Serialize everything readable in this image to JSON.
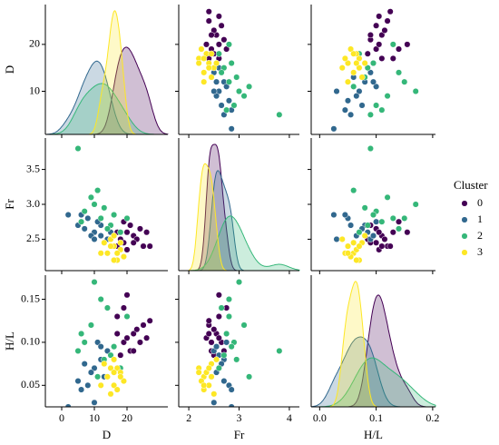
{
  "chart_data": {
    "type": "pairplot",
    "legend_title": "Cluster",
    "legend": "right",
    "variables": [
      {
        "label": "D",
        "xlim": [
          -5,
          32.5
        ],
        "xticks": [
          0,
          10,
          20
        ],
        "ylim": [
          0.8,
          28.5
        ],
        "yticks": [
          10,
          20
        ]
      },
      {
        "label": "Fr",
        "xlim": [
          1.8,
          4.2
        ],
        "xticks": [
          2,
          3,
          4
        ],
        "ylim": [
          2.05,
          3.95
        ],
        "yticks": [
          2.5,
          {
            "value": 3,
            "label": "3.0"
          },
          3.5
        ]
      },
      {
        "label": "H/L",
        "xlim": [
          -0.015,
          0.205
        ],
        "xticks": [
          {
            "value": 0,
            "label": "0.0"
          },
          0.1,
          0.2
        ],
        "ylim": [
          0.025,
          0.178
        ],
        "yticks": [
          0.05,
          {
            "value": 0.1,
            "label": "0.10"
          },
          0.15
        ]
      }
    ],
    "series": [
      {
        "name": "0",
        "color": "#440154",
        "points": [
          [
            19,
            2.45,
            0.1
          ],
          [
            22,
            2.55,
            0.11
          ],
          [
            25,
            2.4,
            0.12
          ],
          [
            17,
            2.6,
            0.13
          ],
          [
            21,
            2.7,
            0.09
          ],
          [
            18,
            2.5,
            0.085
          ],
          [
            24,
            2.65,
            0.1
          ],
          [
            27,
            2.4,
            0.125
          ],
          [
            20,
            2.35,
            0.105
          ],
          [
            16,
            2.55,
            0.095
          ],
          [
            23,
            2.5,
            0.115
          ],
          [
            26,
            2.6,
            0.105
          ],
          [
            19,
            2.75,
            0.14
          ],
          [
            22,
            2.45,
            0.09
          ],
          [
            20,
            2.6,
            0.155
          ],
          [
            17,
            2.4,
            0.11
          ]
        ]
      },
      {
        "name": "1",
        "color": "#31688e",
        "points": [
          [
            8,
            2.8,
            0.05
          ],
          [
            10,
            2.6,
            0.07
          ],
          [
            12,
            2.7,
            0.08
          ],
          [
            6,
            2.85,
            0.045
          ],
          [
            14,
            2.5,
            0.09
          ],
          [
            9,
            2.55,
            0.065
          ],
          [
            11,
            2.75,
            0.1
          ],
          [
            13,
            2.45,
            0.06
          ],
          [
            2,
            2.85,
            0.025
          ],
          [
            7,
            2.65,
            0.075
          ],
          [
            15,
            2.6,
            0.085
          ],
          [
            10,
            2.5,
            0.03
          ],
          [
            5,
            2.7,
            0.055
          ],
          [
            12,
            2.55,
            0.095
          ]
        ]
      },
      {
        "name": "2",
        "color": "#35b779",
        "points": [
          [
            7,
            2.9,
            0.1
          ],
          [
            9,
            3.1,
            0.12
          ],
          [
            12,
            2.8,
            0.15
          ],
          [
            5,
            3.8,
            0.09
          ],
          [
            15,
            2.7,
            0.085
          ],
          [
            10,
            3.0,
            0.17
          ],
          [
            13,
            2.95,
            0.08
          ],
          [
            18,
            2.6,
            0.07
          ],
          [
            20,
            2.8,
            0.13
          ],
          [
            6,
            2.75,
            0.11
          ],
          [
            11,
            3.2,
            0.06
          ],
          [
            16,
            2.85,
            0.095
          ],
          [
            14,
            2.65,
            0.14
          ]
        ]
      },
      {
        "name": "3",
        "color": "#fde725",
        "points": [
          [
            14,
            2.3,
            0.06
          ],
          [
            16,
            2.4,
            0.05
          ],
          [
            17,
            2.2,
            0.07
          ],
          [
            15,
            2.5,
            0.04
          ],
          [
            18,
            2.35,
            0.065
          ],
          [
            13,
            2.45,
            0.075
          ],
          [
            19,
            2.25,
            0.055
          ],
          [
            16,
            2.55,
            0.08
          ],
          [
            17,
            2.3,
            0.045
          ],
          [
            15,
            2.4,
            0.07
          ],
          [
            18,
            2.45,
            0.06
          ],
          [
            12,
            2.3,
            0.05
          ],
          [
            16,
            2.2,
            0.065
          ]
        ]
      }
    ]
  }
}
